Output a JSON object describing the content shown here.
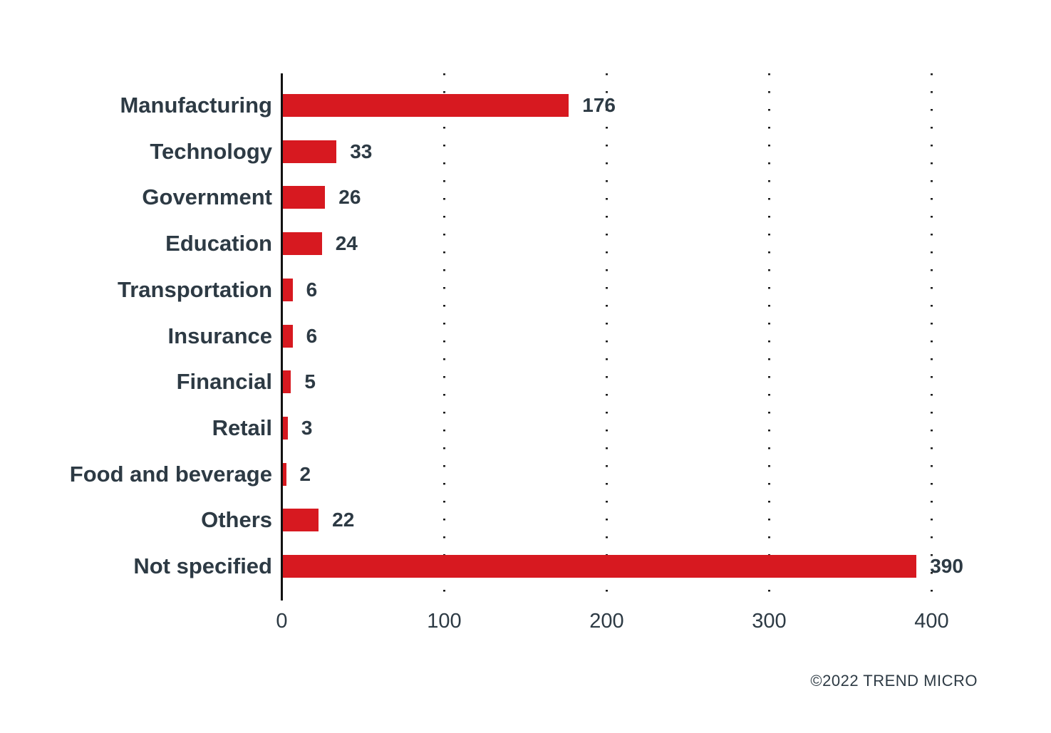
{
  "chart_data": {
    "type": "bar",
    "orientation": "horizontal",
    "title": "",
    "categories": [
      "Manufacturing",
      "Technology",
      "Government",
      "Education",
      "Transportation",
      "Insurance",
      "Financial",
      "Retail",
      "Food and beverage",
      "Others",
      "Not specified"
    ],
    "values": [
      176,
      33,
      26,
      24,
      6,
      6,
      5,
      3,
      2,
      22,
      390
    ],
    "value_labels": [
      "176",
      "33",
      "26",
      "24",
      "6",
      "6",
      "5",
      "3",
      "2",
      "22",
      "390"
    ],
    "x_ticks": [
      0,
      100,
      200,
      300,
      400
    ],
    "xlim": [
      0,
      430
    ],
    "xlabel": "",
    "ylabel": "",
    "grid": "dotted vertical gridlines at x ticks, solid y-axis at 0",
    "legend": "none",
    "bar_color": "#d71920"
  },
  "colors": {
    "bar": "#d71920",
    "text": "#2d3a44",
    "axis": "#111111",
    "background": "#ffffff"
  },
  "footer": {
    "copyright": "©2022 TREND MICRO"
  }
}
